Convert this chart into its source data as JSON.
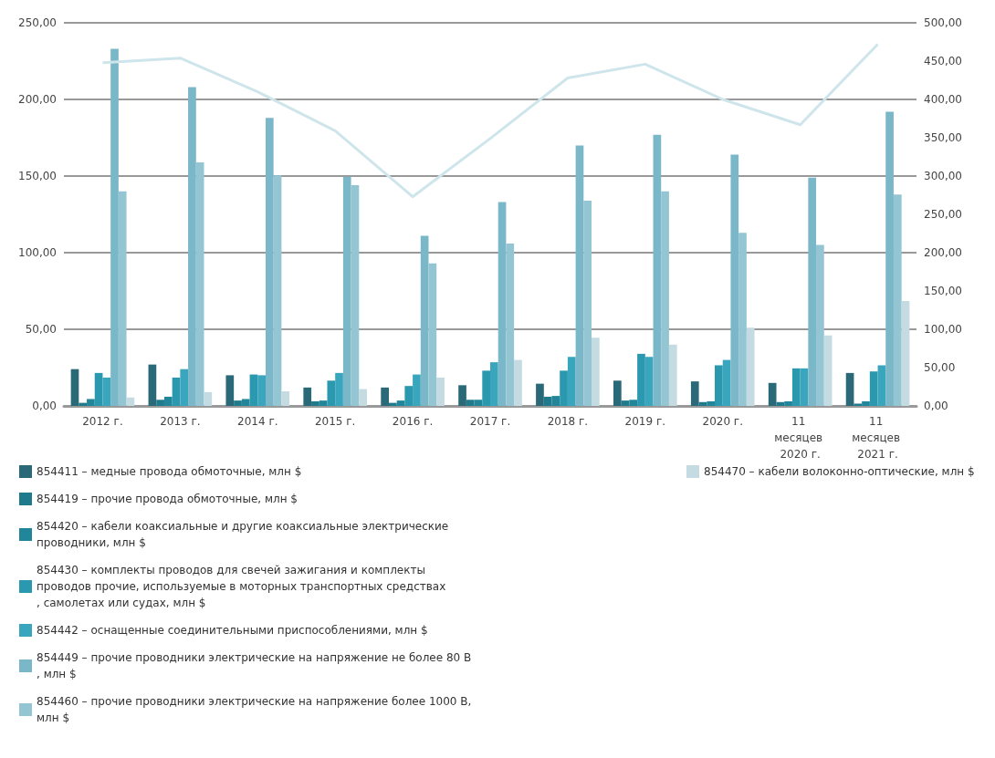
{
  "chart_data": {
    "type": "bar",
    "categories": [
      "2012 г.",
      "2013 г.",
      "2014 г.",
      "2015 г.",
      "2016 г.",
      "2017 г.",
      "2018 г.",
      "2019 г.",
      "2020 г.",
      "11 месяцев 2020 г.",
      "11 месяцев 2021 г."
    ],
    "series": [
      {
        "name": "854411 – медные провода обмоточные, млн $",
        "color": "#2a6a78",
        "values": [
          24,
          27,
          20,
          12,
          12,
          13.5,
          14.5,
          16.5,
          16,
          15,
          21.5
        ]
      },
      {
        "name": "854419 – прочие провода обмоточные, млн $",
        "color": "#1f7a8c",
        "values": [
          2,
          4,
          3.5,
          3,
          2,
          4,
          6,
          3.5,
          2.5,
          2.5,
          1.5
        ]
      },
      {
        "name": "854420 – кабели коаксиальные и другие коаксиальные электрические проводники, млн $",
        "color": "#22869a",
        "values": [
          4.5,
          6,
          4.5,
          3.5,
          3.5,
          4,
          6.5,
          4,
          3,
          3,
          3
        ]
      },
      {
        "name": "854430 – комплекты проводов для свечей зажигания и комплекты проводов прочие, используемые в моторных транспортных средствах, самолетах или судах, млн $",
        "color": "#2a98ae",
        "values": [
          21.5,
          18.5,
          20.5,
          16.5,
          13,
          23,
          23,
          34,
          26.5,
          24.5,
          22.5
        ]
      },
      {
        "name": "854442 – оснащенные соединительными приспособлениями, млн $",
        "color": "#3aa6bd",
        "values": [
          18.5,
          24,
          20,
          21.5,
          20.5,
          28.5,
          32,
          32,
          30,
          24.5,
          26.5
        ]
      },
      {
        "name": "854449 – прочие проводники электрические на напряжение не более 80 В, млн $",
        "color": "#7ab8c9",
        "values": [
          233,
          208,
          188,
          149.5,
          111,
          133,
          170,
          177,
          164,
          149,
          192
        ]
      },
      {
        "name": "854460 – прочие проводники электрические на напряжение более 1000 В, млн $",
        "color": "#94c5d3",
        "values": [
          140,
          159,
          150.5,
          144,
          93,
          106,
          134,
          140,
          113,
          105,
          138
        ]
      },
      {
        "name": "854470 – кабели волоконно-оптические, млн $",
        "color": "#c3dbe1",
        "values": [
          5.5,
          9,
          9.5,
          11,
          18.5,
          30,
          44.5,
          40,
          51,
          46,
          68.5
        ]
      },
      {
        "type": "line",
        "axis": "y2",
        "color": "#cfe5ec",
        "values": [
          448,
          454,
          410,
          359,
          273,
          349,
          428,
          446,
          400,
          367,
          472
        ]
      }
    ],
    "ylim": [
      0,
      250
    ],
    "yticks": [
      {
        "value": 0,
        "label": "0,00"
      },
      {
        "value": 50,
        "label": "50,00"
      },
      {
        "value": 100,
        "label": "100,00"
      },
      {
        "value": 150,
        "label": "150,00"
      },
      {
        "value": 200,
        "label": "200,00"
      },
      {
        "value": 250,
        "label": "250,00"
      }
    ],
    "y2lim": [
      0,
      500
    ],
    "y2ticks": [
      {
        "value": 0,
        "label": "0,00"
      },
      {
        "value": 50,
        "label": "50,00"
      },
      {
        "value": 100,
        "label": "100,00"
      },
      {
        "value": 150,
        "label": "150,00"
      },
      {
        "value": 200,
        "label": "200,00"
      },
      {
        "value": 250,
        "label": "250,00"
      },
      {
        "value": 300,
        "label": "300,00"
      },
      {
        "value": 350,
        "label": "350,00"
      },
      {
        "value": 400,
        "label": "400,00"
      },
      {
        "value": 450,
        "label": "450,00"
      },
      {
        "value": 500,
        "label": "500,00"
      }
    ],
    "grid": "y",
    "legend": "bottom",
    "marker": "none"
  }
}
